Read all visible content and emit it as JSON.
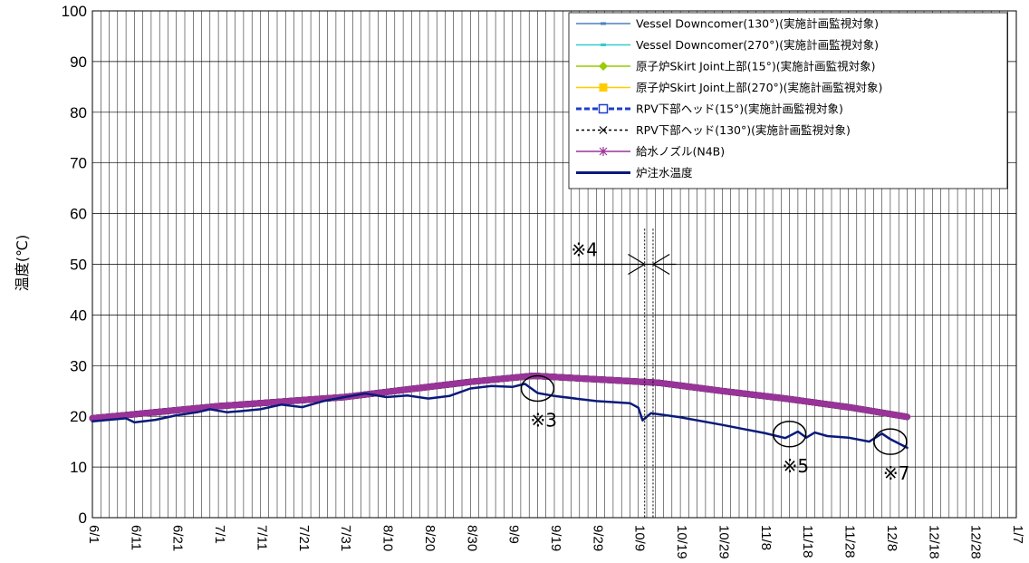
{
  "chart_data": {
    "type": "line",
    "ylabel": "温度(℃)",
    "ylim": [
      0,
      100
    ],
    "yticks": [
      "0",
      "10",
      "20",
      "30",
      "40",
      "50",
      "60",
      "70",
      "80",
      "90",
      "100"
    ],
    "x_tick_labels": [
      "6/1",
      "6/11",
      "6/21",
      "7/1",
      "7/11",
      "7/21",
      "7/31",
      "8/10",
      "8/20",
      "8/30",
      "9/9",
      "9/19",
      "9/29",
      "10/9",
      "10/19",
      "10/29",
      "11/8",
      "11/18",
      "11/28",
      "12/8",
      "12/18",
      "12/28",
      "1/7"
    ],
    "x_range_days": [
      0,
      220
    ],
    "grid": true,
    "legend_position": "top-right",
    "series": [
      {
        "name": "Vessel Downcomer(130°)(実施計画監視対象)",
        "color": "#4F81BD",
        "marker": "dash",
        "x": [
          0,
          30,
          60,
          90,
          105,
          120,
          135,
          150,
          165,
          180,
          194
        ],
        "values": [
          19.6,
          22.0,
          23.8,
          26.8,
          28.0,
          27.3,
          26.6,
          25.0,
          23.5,
          21.8,
          19.9
        ]
      },
      {
        "name": "Vessel Downcomer(270°)(実施計画監視対象)",
        "color": "#33CCCC",
        "marker": "dash",
        "x": [
          0,
          30,
          60,
          90,
          105,
          120,
          135,
          150,
          165,
          180,
          194
        ],
        "values": [
          19.6,
          22.0,
          23.8,
          26.8,
          28.0,
          27.3,
          26.6,
          25.0,
          23.5,
          21.8,
          19.9
        ]
      },
      {
        "name": "原子炉Skirt Joint上部(15°)(実施計画監視対象)",
        "color": "#99CC00",
        "marker": "diamond",
        "x": [
          0,
          30,
          60,
          90,
          105,
          120,
          135,
          150,
          165,
          180,
          194
        ],
        "values": [
          19.6,
          22.0,
          23.8,
          26.8,
          28.0,
          27.3,
          26.6,
          25.0,
          23.5,
          21.8,
          19.9
        ]
      },
      {
        "name": "原子炉Skirt Joint上部(270°)(実施計画監視対象)",
        "color": "#FFCC00",
        "marker": "square",
        "x": [
          0,
          30,
          60,
          90,
          105,
          120,
          135,
          150,
          165,
          180,
          194
        ],
        "values": [
          19.6,
          22.0,
          23.8,
          26.8,
          28.0,
          27.3,
          26.6,
          25.0,
          23.5,
          21.8,
          19.9
        ]
      },
      {
        "name": "RPV下部ヘッド(15°)(実施計画監視対象)",
        "color": "#1F3FC8",
        "marker": "open-square",
        "x": [
          0,
          30,
          60,
          90,
          105,
          120,
          135,
          150,
          165,
          180,
          194
        ],
        "values": [
          19.6,
          22.0,
          23.8,
          26.8,
          28.0,
          27.3,
          26.6,
          25.0,
          23.5,
          21.8,
          19.9
        ]
      },
      {
        "name": "RPV下部ヘッド(130°)(実施計画監視対象)",
        "color": "#000000",
        "marker": "x",
        "x": [
          0,
          30,
          60,
          90,
          105,
          120,
          135,
          150,
          165,
          180,
          194
        ],
        "values": [
          19.6,
          22.0,
          23.8,
          26.8,
          28.0,
          27.3,
          26.6,
          25.0,
          23.5,
          21.8,
          19.9
        ]
      },
      {
        "name": "給水ノズル(N4B)",
        "color": "#993399",
        "marker": "asterisk",
        "x": [
          0,
          30,
          60,
          90,
          105,
          120,
          135,
          150,
          165,
          180,
          194
        ],
        "values": [
          19.6,
          22.0,
          23.8,
          26.8,
          28.0,
          27.3,
          26.6,
          25.0,
          23.5,
          21.8,
          19.9
        ]
      },
      {
        "name": "炉注水温度",
        "color": "#0A1A7A",
        "marker": "none",
        "x": [
          0,
          8,
          10,
          15,
          20,
          25,
          28,
          32,
          35,
          40,
          45,
          50,
          55,
          60,
          65,
          70,
          75,
          80,
          85,
          90,
          95,
          100,
          103,
          106,
          110,
          120,
          128,
          130,
          131,
          133,
          140,
          150,
          155,
          160,
          165,
          168,
          170,
          172,
          175,
          180,
          185,
          188,
          190,
          194
        ],
        "values": [
          19.0,
          19.6,
          18.8,
          19.3,
          20.2,
          20.8,
          21.4,
          20.8,
          21.0,
          21.4,
          22.3,
          21.8,
          23.0,
          23.8,
          24.5,
          23.8,
          24.1,
          23.5,
          24.0,
          25.5,
          26.0,
          25.8,
          26.4,
          24.6,
          24.0,
          23.0,
          22.6,
          21.7,
          19.2,
          20.6,
          19.8,
          18.3,
          17.5,
          16.7,
          15.7,
          17.0,
          15.8,
          16.8,
          16.1,
          15.8,
          15.0,
          16.6,
          15.5,
          13.8
        ]
      }
    ],
    "annotations": [
      {
        "label": "※3",
        "x": 106,
        "y": 25.5
      },
      {
        "label": "※4",
        "x": 130,
        "y": 50
      },
      {
        "label": "※5",
        "x": 166,
        "y": 16.5
      },
      {
        "label": "※7",
        "x": 190,
        "y": 15
      }
    ]
  }
}
